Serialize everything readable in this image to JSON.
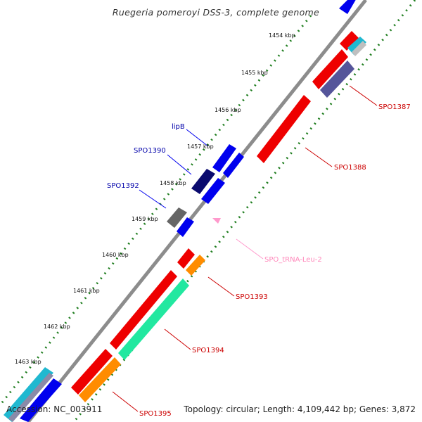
{
  "header": {
    "title": "Ruegeria pomeroyi DSS-3, complete genome"
  },
  "footer": {
    "accession": "Accession: NC_003911",
    "summary": "Topology: circular; Length: 4,109,442 bp; Genes: 3,872"
  },
  "ruler": {
    "ticks": [
      {
        "label": "1454 kbp"
      },
      {
        "label": "1455 kbp"
      },
      {
        "label": "1456 kbp"
      },
      {
        "label": "1457 kbp"
      },
      {
        "label": "1458 kbp"
      },
      {
        "label": "1459 kbp"
      },
      {
        "label": "1460 kbp"
      },
      {
        "label": "1461 kbp"
      },
      {
        "label": "1462 kbp"
      },
      {
        "label": "1463 kbp"
      }
    ]
  },
  "labels": {
    "lipB": "lipB",
    "spo1390": "SPO1390",
    "spo1392": "SPO1392",
    "spo1387": "SPO1387",
    "spo1388": "SPO1388",
    "trna": "SPO_tRNA-Leu-2",
    "spo1393": "SPO1393",
    "spo1394": "SPO1394",
    "spo1395": "SPO1395"
  },
  "colors": {
    "backbone": "#8c8c8c",
    "gc_track": "#1e7d1e",
    "cds_forward": "#ee0000",
    "cds_reverse": "#0000ee",
    "dark_blue": "#0a0a6e",
    "slate": "#55559a",
    "gray": "#666666",
    "cyan": "#20b8d0",
    "mint": "#22e8a0",
    "orange": "#ff8c00",
    "trna": "#ff99cc",
    "label_forward": "#cc0000",
    "label_reverse": "#0000aa",
    "label_trna": "#ff88bb"
  }
}
